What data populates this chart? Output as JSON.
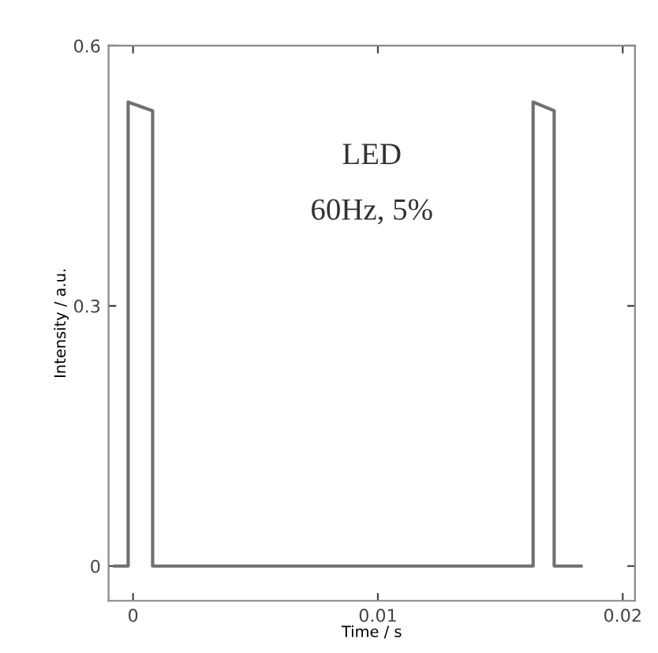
{
  "chart_data": {
    "type": "line",
    "xlabel": "Time / s",
    "ylabel": "Intensity / a.u.",
    "annotations": [
      "LED",
      "60Hz, 5%"
    ],
    "x": [
      -0.00075,
      -0.0002,
      -0.0002,
      0.0008,
      0.0008,
      0.01634,
      0.01634,
      0.0172,
      0.0172,
      0.0183
    ],
    "series": [
      {
        "color": "#707070",
        "values": [
          0,
          0,
          0.535,
          0.525,
          0,
          0,
          0.535,
          0.525,
          0,
          0
        ]
      }
    ],
    "xlim": [
      -0.001,
      0.0205
    ],
    "ylim": [
      -0.04,
      0.6
    ],
    "xticks": [
      0,
      0.01,
      0.02
    ],
    "yticks": [
      0,
      0.3,
      0.6
    ],
    "grid": false,
    "legend": false,
    "marker": "none",
    "line_style": "solid"
  }
}
